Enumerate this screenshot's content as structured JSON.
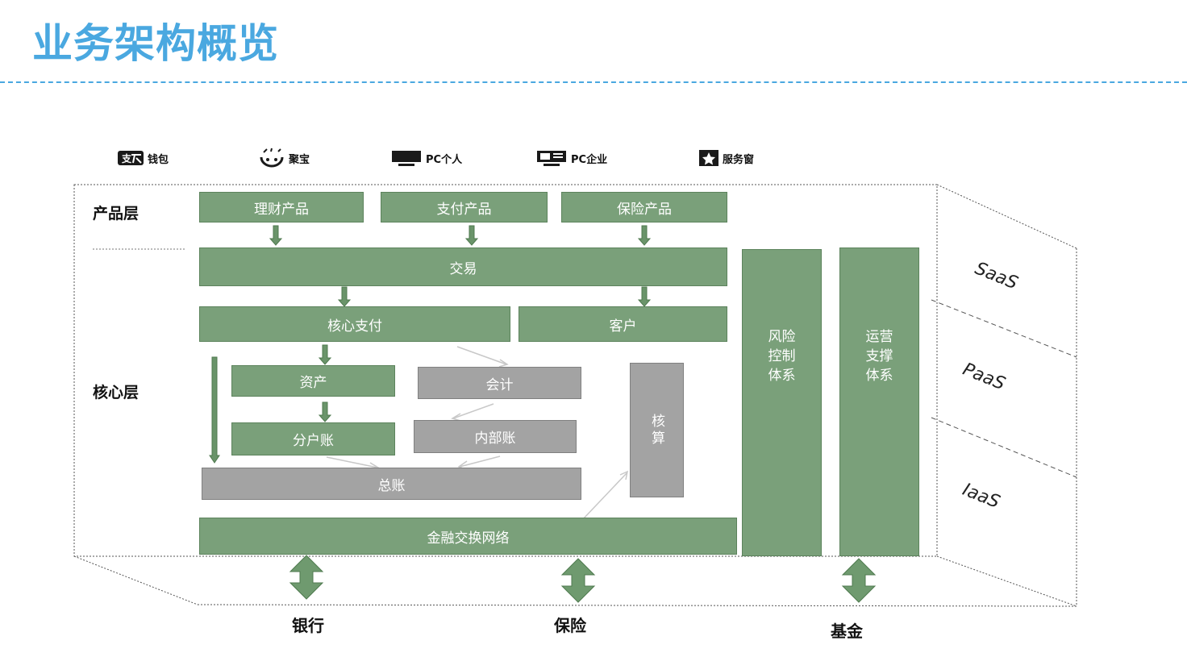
{
  "title": "业务架构概览",
  "channels": [
    {
      "icon": "alipay-wallet-icon",
      "label": "钱包"
    },
    {
      "icon": "jubao-icon",
      "label": "聚宝"
    },
    {
      "icon": "monitor-icon",
      "label": "PC个人"
    },
    {
      "icon": "enterprise-screen-icon",
      "label": "PC企业"
    },
    {
      "icon": "star-window-icon",
      "label": "服务窗"
    }
  ],
  "layers": {
    "product": "产品层",
    "core": "核心层"
  },
  "boxes": {
    "licai": "理财产品",
    "zhifu": "支付产品",
    "baoxian_product": "保险产品",
    "jiaoyi": "交易",
    "hexinzhifu": "核心支付",
    "kehu": "客户",
    "zichan": "资产",
    "kuaiji": "会计",
    "fenhuzhang": "分户账",
    "neibuzhang": "内部账",
    "zongzhang": "总账",
    "hesuan": "核算",
    "jinrong": "金融交换网络",
    "fengxian": [
      "风险",
      "控制",
      "体系"
    ],
    "yunying": [
      "运营",
      "支撑",
      "体系"
    ]
  },
  "tiers": [
    "SaaS",
    "PaaS",
    "IaaS"
  ],
  "partners": [
    "银行",
    "保险",
    "基金"
  ],
  "colors": {
    "title": "#4aa8e0",
    "green_box": "#7aa07a",
    "gray_box": "#a3a3a3"
  }
}
